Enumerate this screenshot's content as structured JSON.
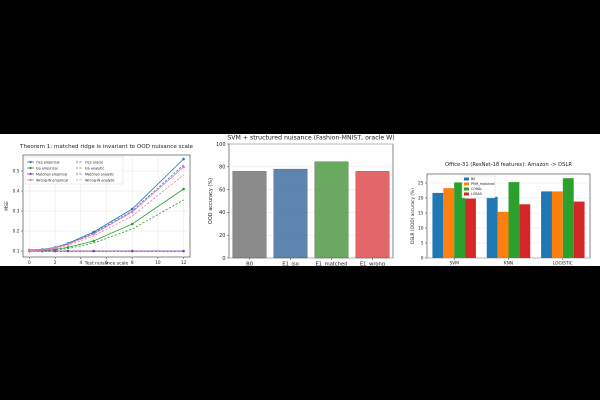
{
  "chart_data": [
    {
      "type": "line",
      "title": "Theorem 1: matched ridge is invariant to OOD nuisance scale",
      "xlabel": "Test nuisance scale",
      "ylabel": "MSE",
      "xlim": [
        -0.5,
        12.5
      ],
      "ylim": [
        0.07,
        0.58
      ],
      "xticks": [
        0,
        2,
        4,
        6,
        8,
        10,
        12
      ],
      "yticks": [
        0.1,
        0.2,
        0.3,
        0.4,
        0.5
      ],
      "grid": true,
      "legend": "top-left",
      "series": [
        {
          "name": "OLS empirical",
          "color": "#1f77b4",
          "dash": "solid",
          "marker": "circle",
          "x": [
            0,
            1,
            2,
            3,
            5,
            8,
            12
          ],
          "y": [
            0.105,
            0.108,
            0.118,
            0.138,
            0.195,
            0.31,
            0.56
          ]
        },
        {
          "name": "OLS oracle",
          "color": "#1f77b4",
          "dash": "dashed",
          "marker": "none",
          "x": [
            0,
            1,
            2,
            3,
            5,
            8,
            12
          ],
          "y": [
            0.1,
            0.104,
            0.114,
            0.134,
            0.19,
            0.3,
            0.53
          ]
        },
        {
          "name": "Iso empirical",
          "color": "#2ca02c",
          "dash": "solid",
          "marker": "circle",
          "x": [
            0,
            1,
            2,
            3,
            5,
            8,
            12
          ],
          "y": [
            0.1,
            0.102,
            0.108,
            0.118,
            0.15,
            0.235,
            0.41
          ]
        },
        {
          "name": "Iso analytic",
          "color": "#2ca02c",
          "dash": "dashed",
          "marker": "none",
          "x": [
            0,
            1,
            2,
            3,
            5,
            8,
            12
          ],
          "y": [
            0.1,
            0.101,
            0.105,
            0.112,
            0.14,
            0.21,
            0.355
          ]
        },
        {
          "name": "Matched empirical",
          "color": "#8c3fa8",
          "dash": "solid",
          "marker": "circle",
          "x": [
            0,
            1,
            2,
            3,
            5,
            8,
            12
          ],
          "y": [
            0.1,
            0.1,
            0.1,
            0.1,
            0.1,
            0.1,
            0.1
          ]
        },
        {
          "name": "Matched analytic",
          "color": "#8c3fa8",
          "dash": "dashed",
          "marker": "none",
          "x": [
            0,
            1,
            2,
            3,
            5,
            8,
            12
          ],
          "y": [
            0.098,
            0.098,
            0.098,
            0.098,
            0.098,
            0.098,
            0.098
          ]
        },
        {
          "name": "Wrong-W empirical",
          "color": "#e377c2",
          "dash": "solid",
          "marker": "circle",
          "x": [
            0,
            1,
            2,
            3,
            5,
            8,
            12
          ],
          "y": [
            0.102,
            0.106,
            0.116,
            0.134,
            0.185,
            0.295,
            0.52
          ]
        },
        {
          "name": "Wrong-W analytic",
          "color": "#e8858f",
          "dash": "dashed",
          "marker": "none",
          "x": [
            0,
            1,
            2,
            3,
            5,
            8,
            12
          ],
          "y": [
            0.1,
            0.103,
            0.112,
            0.128,
            0.175,
            0.275,
            0.48
          ]
        }
      ]
    },
    {
      "type": "bar",
      "title": "SVM + structured nuisance (Fashion-MNIST, oracle W)",
      "xlabel": "",
      "ylabel": "OOD accuracy (%)",
      "ylim": [
        0,
        100
      ],
      "yticks": [
        0,
        20,
        40,
        60,
        80,
        100
      ],
      "categories": [
        "B0",
        "E1_iso",
        "E1_matched",
        "E1_wrong"
      ],
      "values": [
        76,
        78,
        84.5,
        76
      ],
      "colors": [
        "#7f7f7f",
        "#4c78a8",
        "#59a14f",
        "#e15759"
      ],
      "grid": true
    },
    {
      "type": "bar",
      "title": "Office-31 (ResNet-18 features): Amazon -> DSLR",
      "xlabel": "",
      "ylabel": "DSLR (OOD) accuracy (%)",
      "ylim": [
        0,
        28
      ],
      "yticks": [
        0,
        5,
        10,
        15,
        20,
        25
      ],
      "categories": [
        "SVM",
        "KNN",
        "LOGISTIC"
      ],
      "legend": "top-left",
      "series": [
        {
          "name": "B0",
          "color": "#1f77b4",
          "values": [
            21.7,
            20.4,
            22.2
          ]
        },
        {
          "name": "PMH_matched",
          "color": "#ff7f0e",
          "values": [
            23.3,
            15.4,
            22.2
          ]
        },
        {
          "name": "CORAL",
          "color": "#2ca02c",
          "values": [
            25.2,
            25.3,
            26.6
          ]
        },
        {
          "name": "LORAS",
          "color": "#d62728",
          "values": [
            19.8,
            17.9,
            18.8
          ]
        }
      ],
      "grid": true
    }
  ]
}
